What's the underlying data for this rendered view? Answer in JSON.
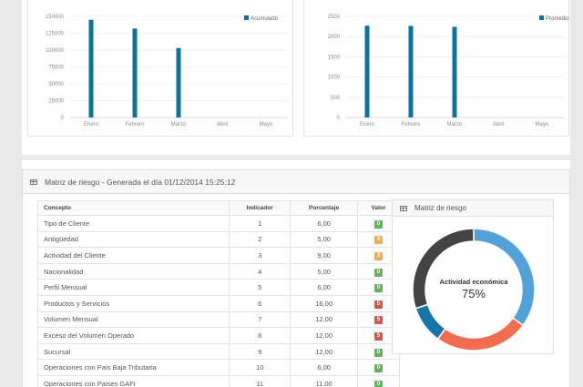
{
  "chart_data": [
    {
      "type": "bar",
      "categories": [
        "Enero",
        "Febrero",
        "Marzo",
        "Abril",
        "Mayo"
      ],
      "series": [
        {
          "name": "Acumulado",
          "values": [
            145000,
            132000,
            103000,
            0,
            0
          ],
          "color": "#0a73a1"
        }
      ],
      "yticks": [
        0,
        25000,
        50000,
        75000,
        100000,
        125000,
        150000
      ],
      "ylim": [
        0,
        150000
      ],
      "legend": "top-right",
      "grid": true
    },
    {
      "type": "bar",
      "categories": [
        "Enero",
        "Febrero",
        "Marzo",
        "Abril",
        "Mayo"
      ],
      "series": [
        {
          "name": "Promedio",
          "values": [
            2270,
            2265,
            2240,
            0,
            0
          ],
          "color": "#0a73a1"
        }
      ],
      "yticks": [
        0,
        500,
        1000,
        1500,
        2000,
        2500
      ],
      "ylim": [
        0,
        2500
      ],
      "legend": "top-right",
      "grid": true
    },
    {
      "type": "pie",
      "title": "Matriz de riesgo",
      "center_label": "Actividad económica",
      "center_value": "75%",
      "slices": [
        {
          "value": 35,
          "color": "#52a2da"
        },
        {
          "value": 25,
          "color": "#f26c4f"
        },
        {
          "value": 10,
          "color": "#1776a8"
        },
        {
          "value": 30,
          "color": "#444444"
        }
      ]
    }
  ],
  "section": {
    "title": "Matriz de riesgo - Generada el día 01/12/2014 15:25:12",
    "table": {
      "headers": [
        "Concepto",
        "Indicador",
        "Porcentaje",
        "Valor"
      ],
      "rows": [
        {
          "concepto": "Tipo de Cliente",
          "indicador": "1",
          "porcentaje": "6,00",
          "valor": "0",
          "color": "#5cb85c"
        },
        {
          "concepto": "Antigüedad",
          "indicador": "2",
          "porcentaje": "5,00",
          "valor": "3",
          "color": "#f0ad4e"
        },
        {
          "concepto": "Actividad del Cliente",
          "indicador": "3",
          "porcentaje": "9,00",
          "valor": "3",
          "color": "#f0ad4e"
        },
        {
          "concepto": "Nacionalidad",
          "indicador": "4",
          "porcentaje": "5,00",
          "valor": "0",
          "color": "#5cb85c"
        },
        {
          "concepto": "Perfil Mensual",
          "indicador": "5",
          "porcentaje": "6,00",
          "valor": "0",
          "color": "#5cb85c"
        },
        {
          "concepto": "Productos y Servicios",
          "indicador": "6",
          "porcentaje": "16,00",
          "valor": "5",
          "color": "#d9534f"
        },
        {
          "concepto": "Volumen Mensual",
          "indicador": "7",
          "porcentaje": "12,00",
          "valor": "5",
          "color": "#d9534f"
        },
        {
          "concepto": "Exceso del Volumen Operado",
          "indicador": "8",
          "porcentaje": "12,00",
          "valor": "5",
          "color": "#d9534f"
        },
        {
          "concepto": "Sucursal",
          "indicador": "9",
          "porcentaje": "12,00",
          "valor": "0",
          "color": "#5cb85c"
        },
        {
          "concepto": "Operaciones con Pais Baja Tributaria",
          "indicador": "10",
          "porcentaje": "6,00",
          "valor": "0",
          "color": "#5cb85c"
        },
        {
          "concepto": "Operaciones con Paises GAFI",
          "indicador": "11",
          "porcentaje": "11,00",
          "valor": "0",
          "color": "#5cb85c"
        }
      ]
    }
  }
}
